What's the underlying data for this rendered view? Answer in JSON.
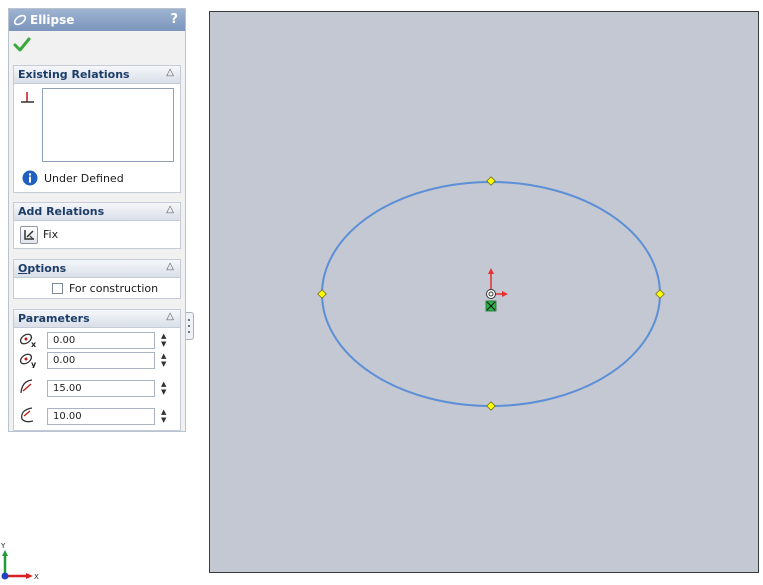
{
  "panel": {
    "title": "Ellipse",
    "help": "?",
    "sections": {
      "existing_relations": {
        "title": "Existing Relations",
        "status": "Under Defined"
      },
      "add_relations": {
        "title": "Add Relations",
        "fix_label": "Fix"
      },
      "options": {
        "title_first": "O",
        "title_rest": "ptions",
        "construction_label": "For construction",
        "construction_checked": false
      },
      "parameters": {
        "title": "Parameters",
        "center_x": "0.00",
        "center_y": "0.00",
        "major_radius": "15.00",
        "minor_radius": "10.00"
      }
    }
  },
  "triad": {
    "y_label": "Y",
    "x_label": "X"
  },
  "colors": {
    "ellipse": "#5b8fd6",
    "point": "#ffff00",
    "origin": "#e53030",
    "title_bar": "#8ea5c9",
    "viewport": "#c4c8d3"
  },
  "icons": [
    "ellipse-icon",
    "ok-checkmark-icon",
    "collapse-chevron-icon",
    "relation-icon",
    "info-icon",
    "fix-relation-icon",
    "center-x-icon",
    "center-y-icon",
    "major-radius-icon",
    "minor-radius-icon",
    "spinner-arrows-icon",
    "origin-icon"
  ]
}
